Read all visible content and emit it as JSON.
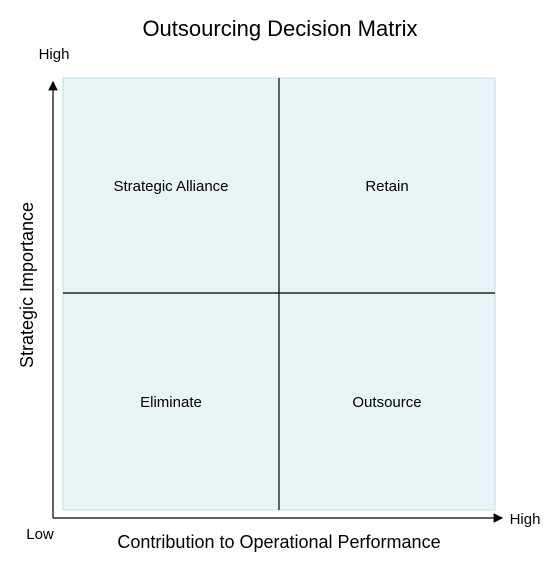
{
  "title": "Outsourcing Decision Matrix",
  "y_axis": {
    "label": "Strategic Importance",
    "high": "High"
  },
  "x_axis": {
    "label": "Contribution to Operational Performance",
    "low": "Low",
    "high": "High"
  },
  "quadrants": [
    "Strategic Alliance",
    "Retain",
    "Eliminate",
    "Outsource"
  ]
}
